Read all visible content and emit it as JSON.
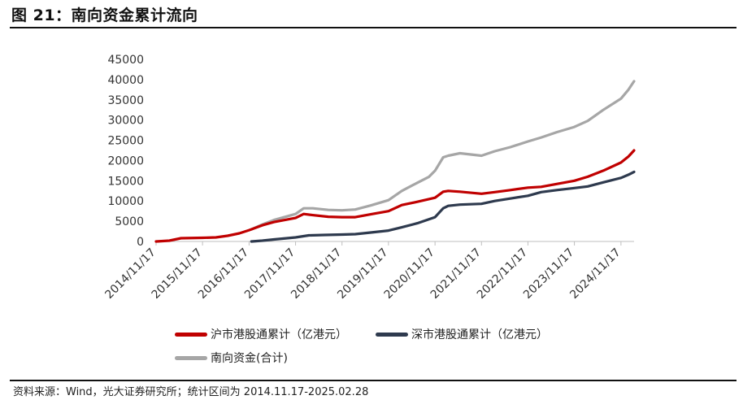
{
  "header": {
    "title": "图 21：南向资金累计流向"
  },
  "footer": {
    "source": "资料来源：Wind，光大证券研究所；统计区间为 2014.11.17-2025.02.28"
  },
  "chart_data": {
    "type": "line",
    "title": "图 21：南向资金累计流向",
    "xlabel": "",
    "ylabel": "",
    "ylim": [
      0,
      45000
    ],
    "yticks": [
      0,
      5000,
      10000,
      15000,
      20000,
      25000,
      30000,
      35000,
      40000,
      45000
    ],
    "xlim": [
      "2014-11-17",
      "2025-02-28"
    ],
    "xticks": [
      "2014/11/17",
      "2015/11/17",
      "2016/11/17",
      "2017/11/17",
      "2018/11/17",
      "2019/11/17",
      "2020/11/17",
      "2021/11/17",
      "2022/11/17",
      "2023/11/17",
      "2024/11/17"
    ],
    "grid": false,
    "legend_position": "bottom",
    "series": [
      {
        "name": "沪市港股通累计（亿港元）",
        "color": "#c00000",
        "points": [
          [
            "2014-11-17",
            0
          ],
          [
            "2015-03-01",
            200
          ],
          [
            "2015-06-01",
            800
          ],
          [
            "2015-11-17",
            900
          ],
          [
            "2016-03-01",
            1000
          ],
          [
            "2016-06-01",
            1400
          ],
          [
            "2016-09-01",
            2000
          ],
          [
            "2016-11-17",
            2800
          ],
          [
            "2017-03-01",
            4000
          ],
          [
            "2017-06-01",
            4800
          ],
          [
            "2017-11-17",
            5800
          ],
          [
            "2018-01-20",
            6800
          ],
          [
            "2018-04-01",
            6500
          ],
          [
            "2018-08-01",
            6100
          ],
          [
            "2018-11-17",
            6000
          ],
          [
            "2019-03-01",
            6000
          ],
          [
            "2019-07-01",
            6700
          ],
          [
            "2019-11-17",
            7500
          ],
          [
            "2020-03-01",
            9000
          ],
          [
            "2020-07-01",
            9800
          ],
          [
            "2020-11-17",
            10800
          ],
          [
            "2021-01-20",
            12300
          ],
          [
            "2021-03-01",
            12500
          ],
          [
            "2021-06-01",
            12300
          ],
          [
            "2021-11-17",
            11800
          ],
          [
            "2022-03-01",
            12200
          ],
          [
            "2022-07-01",
            12700
          ],
          [
            "2022-11-17",
            13300
          ],
          [
            "2023-03-01",
            13500
          ],
          [
            "2023-07-01",
            14200
          ],
          [
            "2023-11-17",
            15000
          ],
          [
            "2024-03-01",
            16000
          ],
          [
            "2024-07-01",
            17500
          ],
          [
            "2024-11-17",
            19500
          ],
          [
            "2025-01-15",
            21000
          ],
          [
            "2025-02-28",
            22500
          ]
        ]
      },
      {
        "name": "深市港股通累计（亿港元）",
        "color": "#2e3a4e",
        "points": [
          [
            "2016-12-05",
            0
          ],
          [
            "2017-03-01",
            200
          ],
          [
            "2017-06-01",
            500
          ],
          [
            "2017-11-17",
            1000
          ],
          [
            "2018-03-01",
            1500
          ],
          [
            "2018-07-01",
            1600
          ],
          [
            "2018-11-17",
            1700
          ],
          [
            "2019-03-01",
            1800
          ],
          [
            "2019-07-01",
            2200
          ],
          [
            "2019-11-17",
            2700
          ],
          [
            "2020-03-01",
            3500
          ],
          [
            "2020-07-01",
            4500
          ],
          [
            "2020-11-17",
            6000
          ],
          [
            "2021-01-20",
            8200
          ],
          [
            "2021-03-01",
            8800
          ],
          [
            "2021-06-01",
            9100
          ],
          [
            "2021-11-17",
            9300
          ],
          [
            "2022-03-01",
            10000
          ],
          [
            "2022-07-01",
            10600
          ],
          [
            "2022-11-17",
            11300
          ],
          [
            "2023-03-01",
            12200
          ],
          [
            "2023-07-01",
            12700
          ],
          [
            "2023-11-17",
            13200
          ],
          [
            "2024-03-01",
            13600
          ],
          [
            "2024-07-01",
            14600
          ],
          [
            "2024-11-17",
            15700
          ],
          [
            "2025-01-15",
            16500
          ],
          [
            "2025-02-28",
            17200
          ]
        ]
      },
      {
        "name": "南向资金(合计)",
        "color": "#a6a6a6",
        "points": [
          [
            "2016-12-05",
            3000
          ],
          [
            "2017-03-01",
            4200
          ],
          [
            "2017-06-01",
            5300
          ],
          [
            "2017-11-17",
            6800
          ],
          [
            "2018-01-20",
            8200
          ],
          [
            "2018-04-01",
            8200
          ],
          [
            "2018-08-01",
            7800
          ],
          [
            "2018-11-17",
            7700
          ],
          [
            "2019-03-01",
            7900
          ],
          [
            "2019-07-01",
            8900
          ],
          [
            "2019-11-17",
            10200
          ],
          [
            "2020-03-01",
            12500
          ],
          [
            "2020-07-01",
            14500
          ],
          [
            "2020-10-01",
            16000
          ],
          [
            "2020-11-17",
            17500
          ],
          [
            "2021-01-20",
            20800
          ],
          [
            "2021-03-01",
            21200
          ],
          [
            "2021-06-01",
            21800
          ],
          [
            "2021-11-17",
            21200
          ],
          [
            "2022-03-01",
            22300
          ],
          [
            "2022-07-01",
            23300
          ],
          [
            "2022-11-17",
            24700
          ],
          [
            "2023-03-01",
            25700
          ],
          [
            "2023-07-01",
            27000
          ],
          [
            "2023-11-17",
            28300
          ],
          [
            "2024-03-01",
            29800
          ],
          [
            "2024-07-01",
            32500
          ],
          [
            "2024-11-17",
            35300
          ],
          [
            "2025-01-15",
            37500
          ],
          [
            "2025-02-28",
            39600
          ]
        ]
      }
    ]
  }
}
